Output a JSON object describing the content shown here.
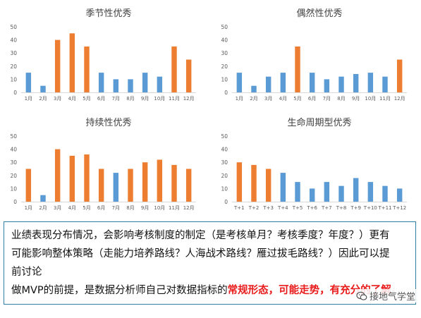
{
  "chart_data": [
    {
      "type": "bar",
      "title": "季节性优秀",
      "categories": [
        "1月",
        "2月",
        "3月",
        "4月",
        "5月",
        "6月",
        "7月",
        "8月",
        "9月",
        "10月",
        "11月",
        "12月"
      ],
      "values": [
        15,
        5,
        40,
        45,
        35,
        15,
        10,
        10,
        15,
        12,
        35,
        25
      ],
      "highlight": [
        false,
        false,
        true,
        true,
        true,
        false,
        false,
        false,
        false,
        false,
        true,
        true
      ],
      "ylim": [
        0,
        50
      ],
      "yticks": [
        0,
        10,
        20,
        30,
        40,
        50
      ],
      "grid": false
    },
    {
      "type": "bar",
      "title": "偶然性优秀",
      "categories": [
        "1月",
        "2月",
        "3月",
        "4月",
        "5月",
        "6月",
        "7月",
        "8月",
        "9月",
        "10月",
        "11月",
        "12月"
      ],
      "values": [
        15,
        5,
        12,
        15,
        35,
        15,
        10,
        12,
        14,
        15,
        12,
        25
      ],
      "highlight": [
        false,
        false,
        false,
        false,
        true,
        false,
        false,
        false,
        false,
        false,
        false,
        true
      ],
      "ylim": [
        0,
        50
      ],
      "yticks": [
        0,
        10,
        20,
        30,
        40,
        50
      ],
      "grid": false
    },
    {
      "type": "bar",
      "title": "持续性优秀",
      "categories": [
        "1月",
        "2月",
        "3月",
        "4月",
        "5月",
        "6月",
        "7月",
        "8月",
        "9月",
        "10月",
        "11月",
        "12月"
      ],
      "values": [
        25,
        5,
        40,
        35,
        36,
        25,
        22,
        25,
        30,
        32,
        28,
        25
      ],
      "highlight": [
        true,
        false,
        true,
        true,
        true,
        true,
        false,
        true,
        true,
        true,
        true,
        true
      ],
      "ylim": [
        0,
        50
      ],
      "yticks": [
        0,
        10,
        20,
        30,
        40,
        50
      ],
      "grid": false
    },
    {
      "type": "bar",
      "title": "生命周期型优秀",
      "categories": [
        "T+1",
        "T+2",
        "T+3",
        "T+4",
        "T+5",
        "T+6",
        "T+7",
        "T+8",
        "T+9",
        "T+10",
        "T+11",
        "T+12"
      ],
      "values": [
        30,
        28,
        25,
        22,
        15,
        10,
        15,
        12,
        18,
        15,
        12,
        10
      ],
      "highlight": [
        true,
        true,
        true,
        false,
        false,
        false,
        false,
        false,
        false,
        false,
        false,
        false
      ],
      "ylim": [
        0,
        50
      ],
      "yticks": [
        0,
        10,
        20,
        30,
        40,
        50
      ],
      "grid": false
    }
  ],
  "colors": {
    "base": "#5b9bd5",
    "highlight": "#ed7d31",
    "axis": "#d9d9d9",
    "tick_text": "#595959",
    "title_text": "#404040"
  },
  "text_block": {
    "line1": "业绩表现分布情况，会影响考核制度的制定（是考核单月？考核季度？年度？）更有",
    "line2": "可能影响整体策略（走能力培养路线？人海战术路线？雁过拔毛路线？）因此可以提",
    "line3": "前讨论",
    "line4_prefix": "做MVP的前提，是数据分析师自己对数据指标的",
    "line4_highlight": "常规形态，可能走势，有充分的了解",
    "line4_suffix": "。"
  },
  "watermark": {
    "text": "接地气学堂",
    "icon": "wechat-bubble-icon"
  }
}
